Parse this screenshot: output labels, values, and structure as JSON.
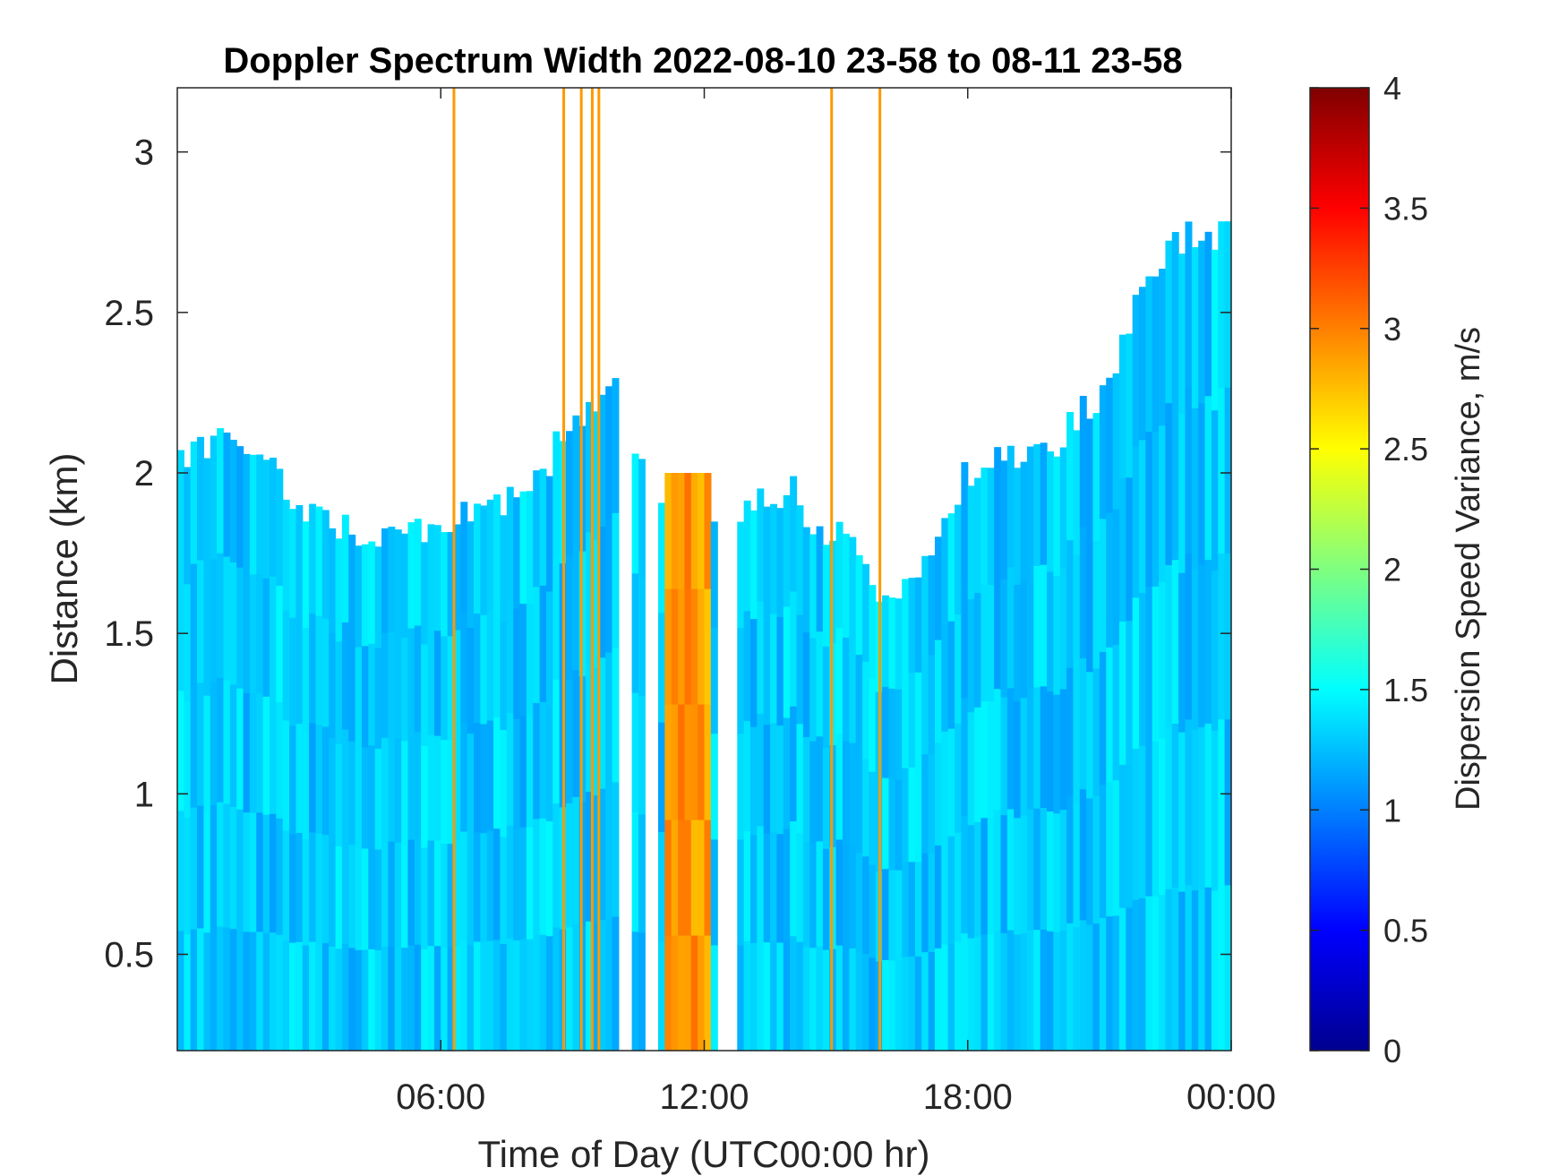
{
  "chart_data": {
    "type": "heatmap",
    "title": "Doppler Spectrum Width 2022-08-10 23-58 to 08-11 23-58",
    "xlabel": "Time of Day (UTC00:00 hr)",
    "ylabel": "Distance (km)",
    "xlim_hours": [
      0,
      24
    ],
    "ylim_km": [
      0.2,
      3.2
    ],
    "x_ticks": [
      {
        "hour": 6,
        "label": "06:00"
      },
      {
        "hour": 12,
        "label": "12:00"
      },
      {
        "hour": 18,
        "label": "18:00"
      },
      {
        "hour": 24,
        "label": "00:00"
      }
    ],
    "y_ticks": [
      {
        "km": 0.5,
        "label": "0.5"
      },
      {
        "km": 1,
        "label": "1"
      },
      {
        "km": 1.5,
        "label": "1.5"
      },
      {
        "km": 2,
        "label": "2"
      },
      {
        "km": 2.5,
        "label": "2.5"
      },
      {
        "km": 3,
        "label": "3"
      }
    ],
    "colorbar": {
      "label": "Dispersion Speed Variance, m/s",
      "colormap": "jet",
      "range": [
        0,
        4
      ],
      "ticks": [
        {
          "value": 0,
          "label": "0"
        },
        {
          "value": 0.5,
          "label": "0.5"
        },
        {
          "value": 1,
          "label": "1"
        },
        {
          "value": 1.5,
          "label": "1.5"
        },
        {
          "value": 2,
          "label": "2"
        },
        {
          "value": 2.5,
          "label": "2.5"
        },
        {
          "value": 3,
          "label": "3"
        },
        {
          "value": 3.5,
          "label": "3.5"
        },
        {
          "value": 4,
          "label": "4"
        }
      ]
    },
    "background_value_ms": 1.3,
    "data_top_profile": {
      "hour": [
        0,
        1.5,
        2.5,
        3.5,
        4.5,
        5.5,
        6.2,
        7,
        8,
        8.7,
        9.8,
        10.8,
        11.3,
        11.9,
        12.4,
        13.2,
        14,
        14.8,
        15.3,
        16,
        16.5,
        17,
        18,
        19,
        20,
        21,
        21.8,
        22.5,
        23.3,
        24
      ],
      "km": [
        2.05,
        2.1,
        1.95,
        1.85,
        1.8,
        1.8,
        1.85,
        1.9,
        1.9,
        2.1,
        2.3,
        2.0,
        1.8,
        2.1,
        1.75,
        1.95,
        1.95,
        1.75,
        1.85,
        1.55,
        1.6,
        1.7,
        2.0,
        2.05,
        2.1,
        2.25,
        2.5,
        2.7,
        2.75,
        2.75
      ]
    },
    "high_width_band": {
      "hour_start": 11.1,
      "hour_end": 12.1,
      "top_km": 2.0,
      "value_ms": 2.9
    },
    "gap_columns_hours": [
      [
        10.1,
        10.4
      ],
      [
        10.7,
        11.0
      ],
      [
        12.35,
        12.75
      ]
    ],
    "vertical_streaks": [
      {
        "hour": 6.3,
        "value_ms": 2.9
      },
      {
        "hour": 8.8,
        "value_ms": 2.9
      },
      {
        "hour": 9.2,
        "value_ms": 2.9
      },
      {
        "hour": 9.45,
        "value_ms": 2.9
      },
      {
        "hour": 9.6,
        "value_ms": 2.9
      },
      {
        "hour": 14.9,
        "value_ms": 2.9
      },
      {
        "hour": 16.0,
        "value_ms": 2.9
      }
    ]
  }
}
